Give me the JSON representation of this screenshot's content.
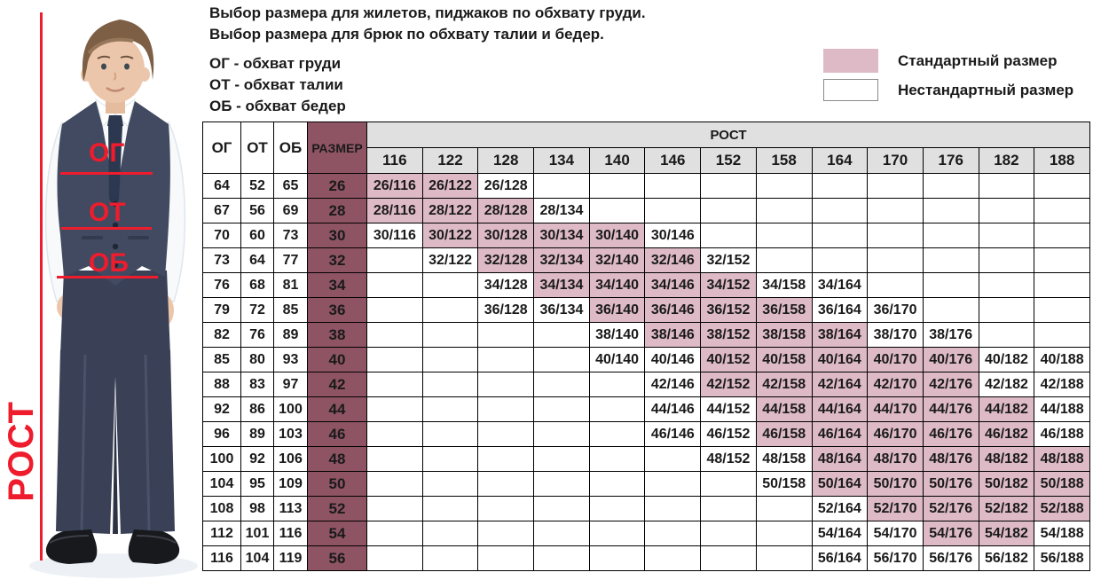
{
  "page": {
    "title_line1": "Выбор размера для жилетов, пиджаков по обхвату груди.",
    "title_line2": "Выбор размера для брюк по обхвату талии и бедер.",
    "abbr_og": "ОГ - обхват груди",
    "abbr_ot": "ОТ - обхват талии",
    "abbr_ob": "ОБ - обхват бедер"
  },
  "legend": {
    "standard": "Стандартный размер",
    "nonstandard": "Нестандартный размер"
  },
  "figure": {
    "og": "ОГ",
    "ot": "ОТ",
    "ob": "ОБ",
    "rost": "РОСТ"
  },
  "colors": {
    "standard_pink": "#ddbac6",
    "size_maroon": "#8e5464",
    "header_gray": "#e0e0e0",
    "annotation_red": "#ee1c2d",
    "table_border": "#000000"
  },
  "table": {
    "rost_header": "РОСТ",
    "col_og": "ОГ",
    "col_ot": "ОТ",
    "col_ob": "ОБ",
    "col_size": "РАЗМЕР",
    "heights": [
      "116",
      "122",
      "128",
      "134",
      "140",
      "146",
      "152",
      "158",
      "164",
      "170",
      "176",
      "182",
      "188"
    ],
    "rows": [
      {
        "og": "64",
        "ot": "52",
        "ob": "65",
        "size": "26",
        "cells": [
          {
            "t": "26/116",
            "std": true
          },
          {
            "t": "26/122",
            "std": true
          },
          {
            "t": "26/128",
            "std": false
          },
          null,
          null,
          null,
          null,
          null,
          null,
          null,
          null,
          null,
          null
        ]
      },
      {
        "og": "67",
        "ot": "56",
        "ob": "69",
        "size": "28",
        "cells": [
          {
            "t": "28/116",
            "std": true
          },
          {
            "t": "28/122",
            "std": true
          },
          {
            "t": "28/128",
            "std": true
          },
          {
            "t": "28/134",
            "std": false
          },
          null,
          null,
          null,
          null,
          null,
          null,
          null,
          null,
          null
        ]
      },
      {
        "og": "70",
        "ot": "60",
        "ob": "73",
        "size": "30",
        "cells": [
          {
            "t": "30/116",
            "std": false
          },
          {
            "t": "30/122",
            "std": true
          },
          {
            "t": "30/128",
            "std": true
          },
          {
            "t": "30/134",
            "std": true
          },
          {
            "t": "30/140",
            "std": true
          },
          {
            "t": "30/146",
            "std": false
          },
          null,
          null,
          null,
          null,
          null,
          null,
          null
        ]
      },
      {
        "og": "73",
        "ot": "64",
        "ob": "77",
        "size": "32",
        "cells": [
          null,
          {
            "t": "32/122",
            "std": false
          },
          {
            "t": "32/128",
            "std": true
          },
          {
            "t": "32/134",
            "std": true
          },
          {
            "t": "32/140",
            "std": true
          },
          {
            "t": "32/146",
            "std": true
          },
          {
            "t": "32/152",
            "std": false
          },
          null,
          null,
          null,
          null,
          null,
          null
        ]
      },
      {
        "og": "76",
        "ot": "68",
        "ob": "81",
        "size": "34",
        "cells": [
          null,
          null,
          {
            "t": "34/128",
            "std": false
          },
          {
            "t": "34/134",
            "std": true
          },
          {
            "t": "34/140",
            "std": true
          },
          {
            "t": "34/146",
            "std": true
          },
          {
            "t": "34/152",
            "std": true
          },
          {
            "t": "34/158",
            "std": false
          },
          {
            "t": "34/164",
            "std": false
          },
          null,
          null,
          null,
          null
        ]
      },
      {
        "og": "79",
        "ot": "72",
        "ob": "85",
        "size": "36",
        "cells": [
          null,
          null,
          {
            "t": "36/128",
            "std": false
          },
          {
            "t": "36/134",
            "std": false
          },
          {
            "t": "36/140",
            "std": true
          },
          {
            "t": "36/146",
            "std": true
          },
          {
            "t": "36/152",
            "std": true
          },
          {
            "t": "36/158",
            "std": true
          },
          {
            "t": "36/164",
            "std": false
          },
          {
            "t": "36/170",
            "std": false
          },
          null,
          null,
          null
        ]
      },
      {
        "og": "82",
        "ot": "76",
        "ob": "89",
        "size": "38",
        "cells": [
          null,
          null,
          null,
          null,
          {
            "t": "38/140",
            "std": false
          },
          {
            "t": "38/146",
            "std": true
          },
          {
            "t": "38/152",
            "std": true
          },
          {
            "t": "38/158",
            "std": true
          },
          {
            "t": "38/164",
            "std": true
          },
          {
            "t": "38/170",
            "std": false
          },
          {
            "t": "38/176",
            "std": false
          },
          null,
          null
        ]
      },
      {
        "og": "85",
        "ot": "80",
        "ob": "93",
        "size": "40",
        "cells": [
          null,
          null,
          null,
          null,
          {
            "t": "40/140",
            "std": false
          },
          {
            "t": "40/146",
            "std": false
          },
          {
            "t": "40/152",
            "std": true
          },
          {
            "t": "40/158",
            "std": true
          },
          {
            "t": "40/164",
            "std": true
          },
          {
            "t": "40/170",
            "std": true
          },
          {
            "t": "40/176",
            "std": true
          },
          {
            "t": "40/182",
            "std": false
          },
          {
            "t": "40/188",
            "std": false
          }
        ]
      },
      {
        "og": "88",
        "ot": "83",
        "ob": "97",
        "size": "42",
        "cells": [
          null,
          null,
          null,
          null,
          null,
          {
            "t": "42/146",
            "std": false
          },
          {
            "t": "42/152",
            "std": true
          },
          {
            "t": "42/158",
            "std": true
          },
          {
            "t": "42/164",
            "std": true
          },
          {
            "t": "42/170",
            "std": true
          },
          {
            "t": "42/176",
            "std": true
          },
          {
            "t": "42/182",
            "std": false
          },
          {
            "t": "42/188",
            "std": false
          }
        ]
      },
      {
        "og": "92",
        "ot": "86",
        "ob": "100",
        "size": "44",
        "cells": [
          null,
          null,
          null,
          null,
          null,
          {
            "t": "44/146",
            "std": false
          },
          {
            "t": "44/152",
            "std": false
          },
          {
            "t": "44/158",
            "std": true
          },
          {
            "t": "44/164",
            "std": true
          },
          {
            "t": "44/170",
            "std": true
          },
          {
            "t": "44/176",
            "std": true
          },
          {
            "t": "44/182",
            "std": true
          },
          {
            "t": "44/188",
            "std": false
          }
        ]
      },
      {
        "og": "96",
        "ot": "89",
        "ob": "103",
        "size": "46",
        "cells": [
          null,
          null,
          null,
          null,
          null,
          {
            "t": "46/146",
            "std": false
          },
          {
            "t": "46/152",
            "std": false
          },
          {
            "t": "46/158",
            "std": true
          },
          {
            "t": "46/164",
            "std": true
          },
          {
            "t": "46/170",
            "std": true
          },
          {
            "t": "46/176",
            "std": true
          },
          {
            "t": "46/182",
            "std": true
          },
          {
            "t": "46/188",
            "std": false
          }
        ]
      },
      {
        "og": "100",
        "ot": "92",
        "ob": "106",
        "size": "48",
        "cells": [
          null,
          null,
          null,
          null,
          null,
          null,
          {
            "t": "48/152",
            "std": false
          },
          {
            "t": "48/158",
            "std": false
          },
          {
            "t": "48/164",
            "std": true
          },
          {
            "t": "48/170",
            "std": true
          },
          {
            "t": "48/176",
            "std": true
          },
          {
            "t": "48/182",
            "std": true
          },
          {
            "t": "48/188",
            "std": true
          }
        ]
      },
      {
        "og": "104",
        "ot": "95",
        "ob": "109",
        "size": "50",
        "cells": [
          null,
          null,
          null,
          null,
          null,
          null,
          null,
          {
            "t": "50/158",
            "std": false
          },
          {
            "t": "50/164",
            "std": true
          },
          {
            "t": "50/170",
            "std": true
          },
          {
            "t": "50/176",
            "std": true
          },
          {
            "t": "50/182",
            "std": true
          },
          {
            "t": "50/188",
            "std": true
          }
        ]
      },
      {
        "og": "108",
        "ot": "98",
        "ob": "113",
        "size": "52",
        "cells": [
          null,
          null,
          null,
          null,
          null,
          null,
          null,
          null,
          {
            "t": "52/164",
            "std": false
          },
          {
            "t": "52/170",
            "std": true
          },
          {
            "t": "52/176",
            "std": true
          },
          {
            "t": "52/182",
            "std": true
          },
          {
            "t": "52/188",
            "std": true
          }
        ]
      },
      {
        "og": "112",
        "ot": "101",
        "ob": "116",
        "size": "54",
        "cells": [
          null,
          null,
          null,
          null,
          null,
          null,
          null,
          null,
          {
            "t": "54/164",
            "std": false
          },
          {
            "t": "54/170",
            "std": false
          },
          {
            "t": "54/176",
            "std": true
          },
          {
            "t": "54/182",
            "std": true
          },
          {
            "t": "54/188",
            "std": false
          }
        ]
      },
      {
        "og": "116",
        "ot": "104",
        "ob": "119",
        "size": "56",
        "cells": [
          null,
          null,
          null,
          null,
          null,
          null,
          null,
          null,
          {
            "t": "56/164",
            "std": false
          },
          {
            "t": "56/170",
            "std": false
          },
          {
            "t": "56/176",
            "std": false
          },
          {
            "t": "56/182",
            "std": false
          },
          {
            "t": "56/188",
            "std": false
          }
        ]
      }
    ]
  }
}
